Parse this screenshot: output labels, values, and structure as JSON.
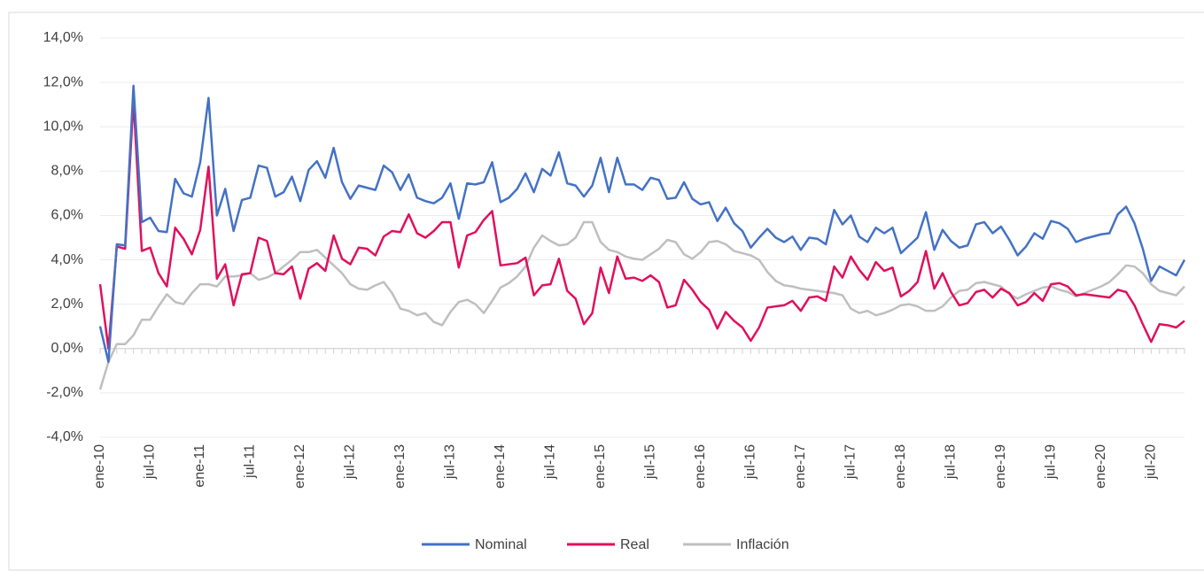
{
  "chart_data": {
    "type": "line",
    "categories": [
      "ene-10",
      null,
      null,
      null,
      null,
      null,
      "jul-10",
      null,
      null,
      null,
      null,
      null,
      "ene-11",
      null,
      null,
      null,
      null,
      null,
      "jul-11",
      null,
      null,
      null,
      null,
      null,
      "ene-12",
      null,
      null,
      null,
      null,
      null,
      "jul-12",
      null,
      null,
      null,
      null,
      null,
      "ene-13",
      null,
      null,
      null,
      null,
      null,
      "jul-13",
      null,
      null,
      null,
      null,
      null,
      "ene-14",
      null,
      null,
      null,
      null,
      null,
      "jul-14",
      null,
      null,
      null,
      null,
      null,
      "ene-15",
      null,
      null,
      null,
      null,
      null,
      "jul-15",
      null,
      null,
      null,
      null,
      null,
      "ene-16",
      null,
      null,
      null,
      null,
      null,
      "jul-16",
      null,
      null,
      null,
      null,
      null,
      "ene-17",
      null,
      null,
      null,
      null,
      null,
      "jul-17",
      null,
      null,
      null,
      null,
      null,
      "ene-18",
      null,
      null,
      null,
      null,
      null,
      "jul-18",
      null,
      null,
      null,
      null,
      null,
      "ene-19",
      null,
      null,
      null,
      null,
      null,
      "jul-19",
      null,
      null,
      null,
      null,
      null,
      "ene-20",
      null,
      null,
      null,
      null,
      null,
      "jul-20",
      null,
      null,
      null,
      null
    ],
    "series": [
      {
        "name": "Nominal",
        "color": "#4472c4",
        "values": [
          1.0,
          -0.6,
          4.7,
          4.65,
          11.85,
          5.7,
          5.9,
          5.3,
          5.25,
          7.65,
          7.0,
          6.85,
          8.4,
          11.3,
          6.0,
          7.2,
          5.3,
          6.7,
          6.8,
          8.25,
          8.15,
          6.85,
          7.05,
          7.75,
          6.65,
          8.05,
          8.45,
          7.7,
          9.05,
          7.5,
          6.75,
          7.35,
          7.25,
          7.15,
          8.25,
          7.95,
          7.15,
          7.85,
          6.8,
          6.65,
          6.55,
          6.8,
          7.45,
          5.85,
          7.45,
          7.4,
          7.5,
          8.4,
          6.6,
          6.8,
          7.2,
          7.9,
          7.05,
          8.1,
          7.8,
          8.85,
          7.45,
          7.35,
          6.85,
          7.35,
          8.6,
          7.05,
          8.6,
          7.4,
          7.4,
          7.15,
          7.7,
          7.6,
          6.75,
          6.8,
          7.5,
          6.75,
          6.5,
          6.6,
          5.75,
          6.35,
          5.65,
          5.3,
          4.55,
          5.0,
          5.4,
          5.0,
          4.8,
          5.05,
          4.45,
          5.0,
          4.95,
          4.7,
          6.25,
          5.6,
          6.0,
          5.05,
          4.8,
          5.45,
          5.2,
          5.45,
          4.3,
          4.65,
          5.0,
          6.15,
          4.45,
          5.35,
          4.85,
          4.55,
          4.65,
          5.6,
          5.7,
          5.2,
          5.5,
          4.9,
          4.2,
          4.6,
          5.2,
          4.95,
          5.75,
          5.65,
          5.4,
          4.8,
          4.95,
          5.05,
          5.15,
          5.2,
          6.05,
          6.4,
          5.65,
          4.5,
          3.05,
          3.7,
          3.5,
          3.3,
          4.0
        ]
      },
      {
        "name": "Real",
        "color": "#e0105c",
        "values": [
          2.9,
          0.0,
          4.6,
          4.5,
          11.2,
          4.4,
          4.55,
          3.4,
          2.8,
          5.45,
          4.95,
          4.25,
          5.35,
          8.2,
          3.15,
          3.8,
          1.95,
          3.35,
          3.4,
          5.0,
          4.85,
          3.4,
          3.35,
          3.7,
          2.25,
          3.6,
          3.85,
          3.5,
          5.1,
          4.05,
          3.8,
          4.55,
          4.5,
          4.2,
          5.05,
          5.3,
          5.25,
          6.05,
          5.2,
          5.0,
          5.3,
          5.7,
          5.7,
          3.65,
          5.1,
          5.25,
          5.8,
          6.2,
          3.75,
          3.8,
          3.85,
          4.1,
          2.4,
          2.85,
          2.9,
          4.05,
          2.6,
          2.25,
          1.1,
          1.6,
          3.65,
          2.5,
          4.15,
          3.15,
          3.2,
          3.05,
          3.3,
          3.0,
          1.85,
          1.95,
          3.1,
          2.65,
          2.1,
          1.75,
          0.9,
          1.65,
          1.25,
          0.95,
          0.35,
          0.95,
          1.85,
          1.9,
          1.95,
          2.15,
          1.7,
          2.3,
          2.35,
          2.15,
          3.7,
          3.2,
          4.15,
          3.55,
          3.1,
          3.9,
          3.5,
          3.65,
          2.35,
          2.6,
          3.0,
          4.4,
          2.7,
          3.4,
          2.55,
          1.95,
          2.05,
          2.55,
          2.65,
          2.3,
          2.7,
          2.5,
          1.95,
          2.1,
          2.5,
          2.15,
          2.9,
          2.95,
          2.8,
          2.4,
          2.45,
          2.4,
          2.35,
          2.3,
          2.65,
          2.55,
          1.95,
          1.1,
          0.3,
          1.1,
          1.05,
          0.95,
          1.25
        ]
      },
      {
        "name": "Inflación",
        "color": "#bfbfbf",
        "values": [
          -1.85,
          -0.6,
          0.2,
          0.2,
          0.6,
          1.3,
          1.3,
          1.9,
          2.45,
          2.1,
          2.0,
          2.5,
          2.9,
          2.9,
          2.8,
          3.25,
          3.25,
          3.3,
          3.4,
          3.1,
          3.2,
          3.4,
          3.7,
          4.0,
          4.35,
          4.35,
          4.45,
          4.1,
          3.75,
          3.4,
          2.9,
          2.7,
          2.65,
          2.85,
          3.0,
          2.5,
          1.8,
          1.7,
          1.5,
          1.6,
          1.2,
          1.05,
          1.65,
          2.1,
          2.2,
          2.0,
          1.6,
          2.15,
          2.75,
          2.95,
          3.25,
          3.7,
          4.55,
          5.1,
          4.85,
          4.65,
          4.7,
          5.0,
          5.7,
          5.7,
          4.8,
          4.45,
          4.35,
          4.15,
          4.05,
          4.0,
          4.25,
          4.5,
          4.9,
          4.8,
          4.25,
          4.05,
          4.35,
          4.8,
          4.85,
          4.7,
          4.4,
          4.3,
          4.2,
          4.0,
          3.45,
          3.05,
          2.85,
          2.8,
          2.7,
          2.65,
          2.6,
          2.55,
          2.5,
          2.4,
          1.8,
          1.6,
          1.7,
          1.5,
          1.6,
          1.75,
          1.95,
          2.0,
          1.9,
          1.7,
          1.7,
          1.9,
          2.3,
          2.6,
          2.65,
          2.95,
          3.0,
          2.9,
          2.8,
          2.45,
          2.25,
          2.45,
          2.6,
          2.75,
          2.8,
          2.65,
          2.55,
          2.35,
          2.5,
          2.65,
          2.8,
          3.0,
          3.35,
          3.75,
          3.7,
          3.4,
          2.9,
          2.6,
          2.5,
          2.4,
          2.8
        ]
      }
    ],
    "ylim": [
      -4,
      14
    ],
    "yticks": [
      {
        "value": -4,
        "label": "-4,0%"
      },
      {
        "value": -2,
        "label": "-2,0%"
      },
      {
        "value": 0,
        "label": "0,0%"
      },
      {
        "value": 2,
        "label": "2,0%"
      },
      {
        "value": 4,
        "label": "4,0%"
      },
      {
        "value": 6,
        "label": "6,0%"
      },
      {
        "value": 8,
        "label": "8,0%"
      },
      {
        "value": 10,
        "label": "10,0%"
      },
      {
        "value": 12,
        "label": "12,0%"
      },
      {
        "value": 14,
        "label": "14,0%"
      }
    ],
    "grid": true,
    "legend": "bottom"
  }
}
